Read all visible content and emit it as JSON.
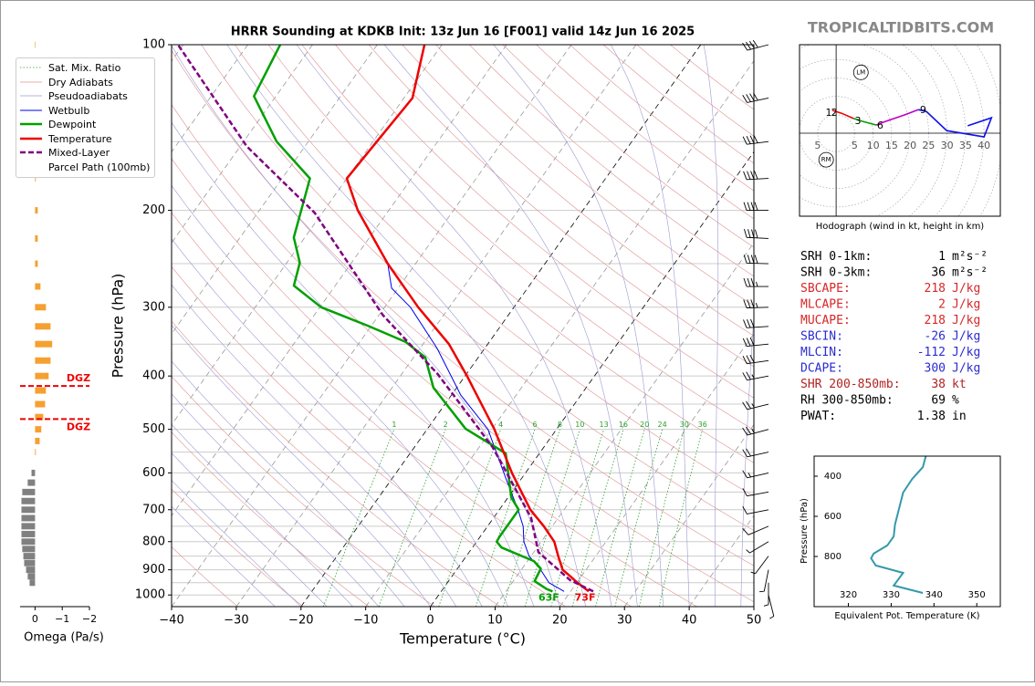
{
  "site": "TROPICALTIDBITS.COM",
  "chart_data": [
    {
      "type": "skewt",
      "title": "HRRR Sounding at KDKB Init: 13z Jun 16 [F001] valid 14z Jun 16 2025",
      "xlabel": "Temperature (°C)",
      "ylabel": "Pressure (hPa)",
      "xlim": [
        -40,
        50
      ],
      "xticks": [
        {
          "value": -40,
          "label": "−40"
        },
        {
          "value": -30,
          "label": "−30"
        },
        {
          "value": -20,
          "label": "−20"
        },
        {
          "value": -10,
          "label": "−10"
        },
        0,
        10,
        20,
        30,
        40,
        50
      ],
      "ylim": [
        1050,
        100
      ],
      "log_y": true,
      "yticks": [
        100,
        200,
        300,
        400,
        500,
        600,
        700,
        800,
        900,
        1000
      ],
      "ygrid": [
        100,
        150,
        200,
        250,
        300,
        350,
        400,
        450,
        500,
        550,
        600,
        650,
        700,
        750,
        800,
        850,
        900,
        950,
        1000
      ],
      "legend": "upper left",
      "background_lines": [
        {
          "name": "Sat. Mix. Ratio",
          "color": "#2ca02c",
          "style": "dotted"
        },
        {
          "name": "Dry Adiabats",
          "color": "#e09090",
          "style": "solid"
        },
        {
          "name": "Pseudoadiabats",
          "color": "#9a9ad4",
          "style": "solid"
        }
      ],
      "mixing_ratio_labels": [
        1,
        2,
        4,
        6,
        8,
        10,
        13,
        16,
        20,
        24,
        30,
        36
      ],
      "series": [
        {
          "name": "Wetbulb",
          "color": "#0000ee",
          "width": 1,
          "style": "solid",
          "pressure": [
            985,
            950,
            900,
            850,
            800,
            750,
            700,
            616,
            500,
            433,
            356,
            300,
            277,
            250
          ],
          "values": [
            19,
            15.7,
            13,
            9.7,
            7.3,
            5.5,
            2.9,
            -2.3,
            -10.6,
            -18.6,
            -27.4,
            -36,
            -41,
            -44.3
          ]
        },
        {
          "name": "Dewpoint",
          "color": "#00a000",
          "width": 2.5,
          "style": "solid",
          "pressure": [
            985,
            975,
            944,
            896,
            868,
            820,
            800,
            783,
            700,
            665,
            553,
            499,
            420,
            370,
            347,
            324,
            300,
            274,
            249,
            224,
            175,
            150,
            124,
            100
          ],
          "values": [
            17.2,
            16,
            13.3,
            12.9,
            11,
            4.5,
            3.1,
            3,
            3,
            0.5,
            -5.2,
            -14.1,
            -23.6,
            -28.2,
            -32.9,
            -40.6,
            -49.8,
            -56.4,
            -58,
            -61.7,
            -65.7,
            -74.9,
            -83.4,
            -85
          ]
        },
        {
          "name": "Temperature",
          "color": "#ee0000",
          "width": 2.5,
          "style": "solid",
          "pressure": [
            985,
            950,
            925,
            900,
            850,
            800,
            750,
            700,
            600,
            500,
            400,
            350,
            300,
            250,
            200,
            175,
            150,
            125,
            100
          ],
          "values": [
            22.8,
            20.1,
            18.3,
            16.4,
            14.2,
            12,
            8.7,
            4.8,
            -2.1,
            -9.6,
            -19.7,
            -26,
            -34.8,
            -44.3,
            -54.8,
            -60,
            -59.4,
            -58.7,
            -62.7
          ]
        },
        {
          "name": "Mixed-Layer\nParcel Path (100mb)",
          "color": "#800080",
          "width": 2.5,
          "style": "dashed",
          "pressure": [
            985,
            940,
            836,
            724,
            539,
            397,
            310,
            202,
            153,
            100
          ],
          "values": [
            23.5,
            18.7,
            10.7,
            5.8,
            -7.9,
            -24.4,
            -39.4,
            -61.2,
            -79,
            -100.8
          ]
        }
      ],
      "surface_labels": [
        {
          "value": 63,
          "label": "63F",
          "color": "#00a000"
        },
        {
          "value": 73,
          "label": "73F",
          "color": "#ee0000"
        }
      ],
      "wind": {
        "pressure": [
          100,
          125,
          150,
          175,
          200,
          225,
          250,
          275,
          300,
          325,
          350,
          375,
          400,
          450,
          500,
          550,
          600,
          650,
          700,
          750,
          800,
          850,
          900,
          950,
          1000
        ],
        "u": [
          38,
          38,
          40,
          40,
          42,
          40,
          38,
          36,
          35,
          32,
          30,
          28,
          26,
          24,
          22,
          18,
          13,
          11,
          10,
          7,
          5,
          3,
          1,
          0,
          -1
        ],
        "v": [
          10,
          8,
          5,
          2,
          0,
          -2,
          -1,
          0,
          1,
          2,
          3,
          4,
          5,
          6,
          6,
          4,
          3,
          2,
          2,
          3,
          3,
          4,
          5,
          5,
          4
        ]
      }
    },
    {
      "type": "omega",
      "xlabel": "Omega (Pa/s)",
      "xlim": [
        0.55,
        -2
      ],
      "xticks": [
        0,
        {
          "value": -1,
          "label": "−1"
        },
        {
          "value": -2,
          "label": "−2"
        }
      ],
      "ylim": [
        1050,
        100
      ],
      "log_y": true,
      "pressure": [
        100,
        125,
        150,
        175,
        200,
        225,
        250,
        275,
        300,
        325,
        350,
        375,
        400,
        425,
        450,
        475,
        500,
        525,
        550,
        600,
        625,
        650,
        675,
        700,
        725,
        750,
        775,
        800,
        825,
        850,
        875,
        900,
        925,
        950
      ],
      "values": [
        -0.02,
        -0.1,
        -0.05,
        -0.03,
        -0.1,
        -0.1,
        -0.1,
        -0.2,
        -0.4,
        -0.57,
        -0.63,
        -0.57,
        -0.5,
        -0.4,
        -0.37,
        -0.3,
        -0.23,
        -0.17,
        -0.03,
        0.13,
        0.27,
        0.47,
        0.5,
        0.5,
        0.5,
        0.5,
        0.5,
        0.5,
        0.47,
        0.43,
        0.4,
        0.33,
        0.27,
        0.2
      ],
      "colors": {
        "negative": "#f5a030",
        "positive": "#808080"
      },
      "dgz": {
        "pressures": [
          417,
          479
        ],
        "labels": [
          "DGZ",
          "DGZ"
        ],
        "color": "#ee0000"
      }
    },
    {
      "type": "hodograph",
      "caption": "Hodograph (wind in kt, height in km)",
      "xlim": [
        -9.9,
        44.4
      ],
      "ylim": [
        -22.5,
        24
      ],
      "rings": [
        5,
        10,
        15,
        20,
        25,
        30,
        35,
        40,
        45
      ],
      "ring_labels": [
        {
          "value": -5,
          "label": "5"
        },
        5,
        10,
        15,
        20,
        25,
        30,
        35,
        40
      ],
      "segments": [
        {
          "color": "#ee0000",
          "u": [
            -1,
            1.5,
            4.7
          ],
          "v": [
            6.2,
            5.4,
            4
          ]
        },
        {
          "color": "#00a000",
          "u": [
            4.7,
            7.2,
            10.9
          ],
          "v": [
            4,
            3.2,
            2.2
          ]
        },
        {
          "color": "#c000c0",
          "u": [
            10.9,
            12.8,
            18.3,
            22.2
          ],
          "v": [
            2.2,
            3,
            4.9,
            6.4
          ]
        },
        {
          "color": "#1010ee",
          "u": [
            22.2,
            24.4,
            29.9,
            40,
            42,
            35.6
          ],
          "v": [
            6.4,
            5.9,
            0.7,
            -1,
            4.2,
            2
          ]
        }
      ],
      "heights": {
        "labels": [
          1,
          2,
          3,
          6,
          9
        ],
        "u": [
          -2,
          -0.5,
          5.9,
          11.9,
          23.5
        ],
        "v": [
          5.4,
          5.4,
          3.2,
          2,
          6.2
        ]
      },
      "storm_motion": {
        "labels": [
          "LM",
          "RM"
        ],
        "u": [
          6.7,
          -2.7
        ],
        "v": [
          16.5,
          -7.2
        ]
      }
    },
    {
      "type": "profile",
      "xlabel": "Equivalent Pot. Temperature (K)",
      "ylabel": "Pressure (hPa)",
      "xlim": [
        312,
        355.5
      ],
      "xticks": [
        320,
        330,
        340,
        350
      ],
      "ylim": [
        1050,
        300
      ],
      "yticks": [
        400,
        600,
        800
      ],
      "color": "#3399aa",
      "pressure": [
        300,
        355,
        414,
        482,
        573,
        641,
        700,
        745,
        786,
        809,
        845,
        882,
        945,
        982
      ],
      "values": [
        338.1,
        337.4,
        334.9,
        332.8,
        331.7,
        330.9,
        330.6,
        329.1,
        325.9,
        325.3,
        326.4,
        332.8,
        330.6,
        337.4
      ]
    }
  ],
  "indices": {
    "rows": [
      {
        "label": "SRH 0-1km:",
        "value": 1,
        "unit": "m²s⁻²",
        "color": "#000000"
      },
      {
        "label": "SRH 0-3km:",
        "value": 36,
        "unit": "m²s⁻²",
        "color": "#000000"
      },
      {
        "label": "SBCAPE:",
        "value": 218,
        "unit": "J/kg",
        "color": "#d62728"
      },
      {
        "label": "MLCAPE:",
        "value": 2,
        "unit": "J/kg",
        "color": "#d62728"
      },
      {
        "label": "MUCAPE:",
        "value": 218,
        "unit": "J/kg",
        "color": "#d62728"
      },
      {
        "label": "SBCIN:",
        "value": -26,
        "unit": "J/kg",
        "color": "#2b2bd0"
      },
      {
        "label": "MLCIN:",
        "value": -112,
        "unit": "J/kg",
        "color": "#2b2bd0"
      },
      {
        "label": "DCAPE:",
        "value": 300,
        "unit": "J/kg",
        "color": "#2b2bd0"
      },
      {
        "label": "SHR 200-850mb:",
        "value": 38,
        "unit": "kt",
        "color": "#b22222"
      },
      {
        "label": "RH 300-850mb:",
        "value": 69,
        "unit": "%",
        "color": "#000000"
      },
      {
        "label": "PWAT:",
        "value": 1.38,
        "unit": "in",
        "color": "#000000"
      }
    ]
  }
}
